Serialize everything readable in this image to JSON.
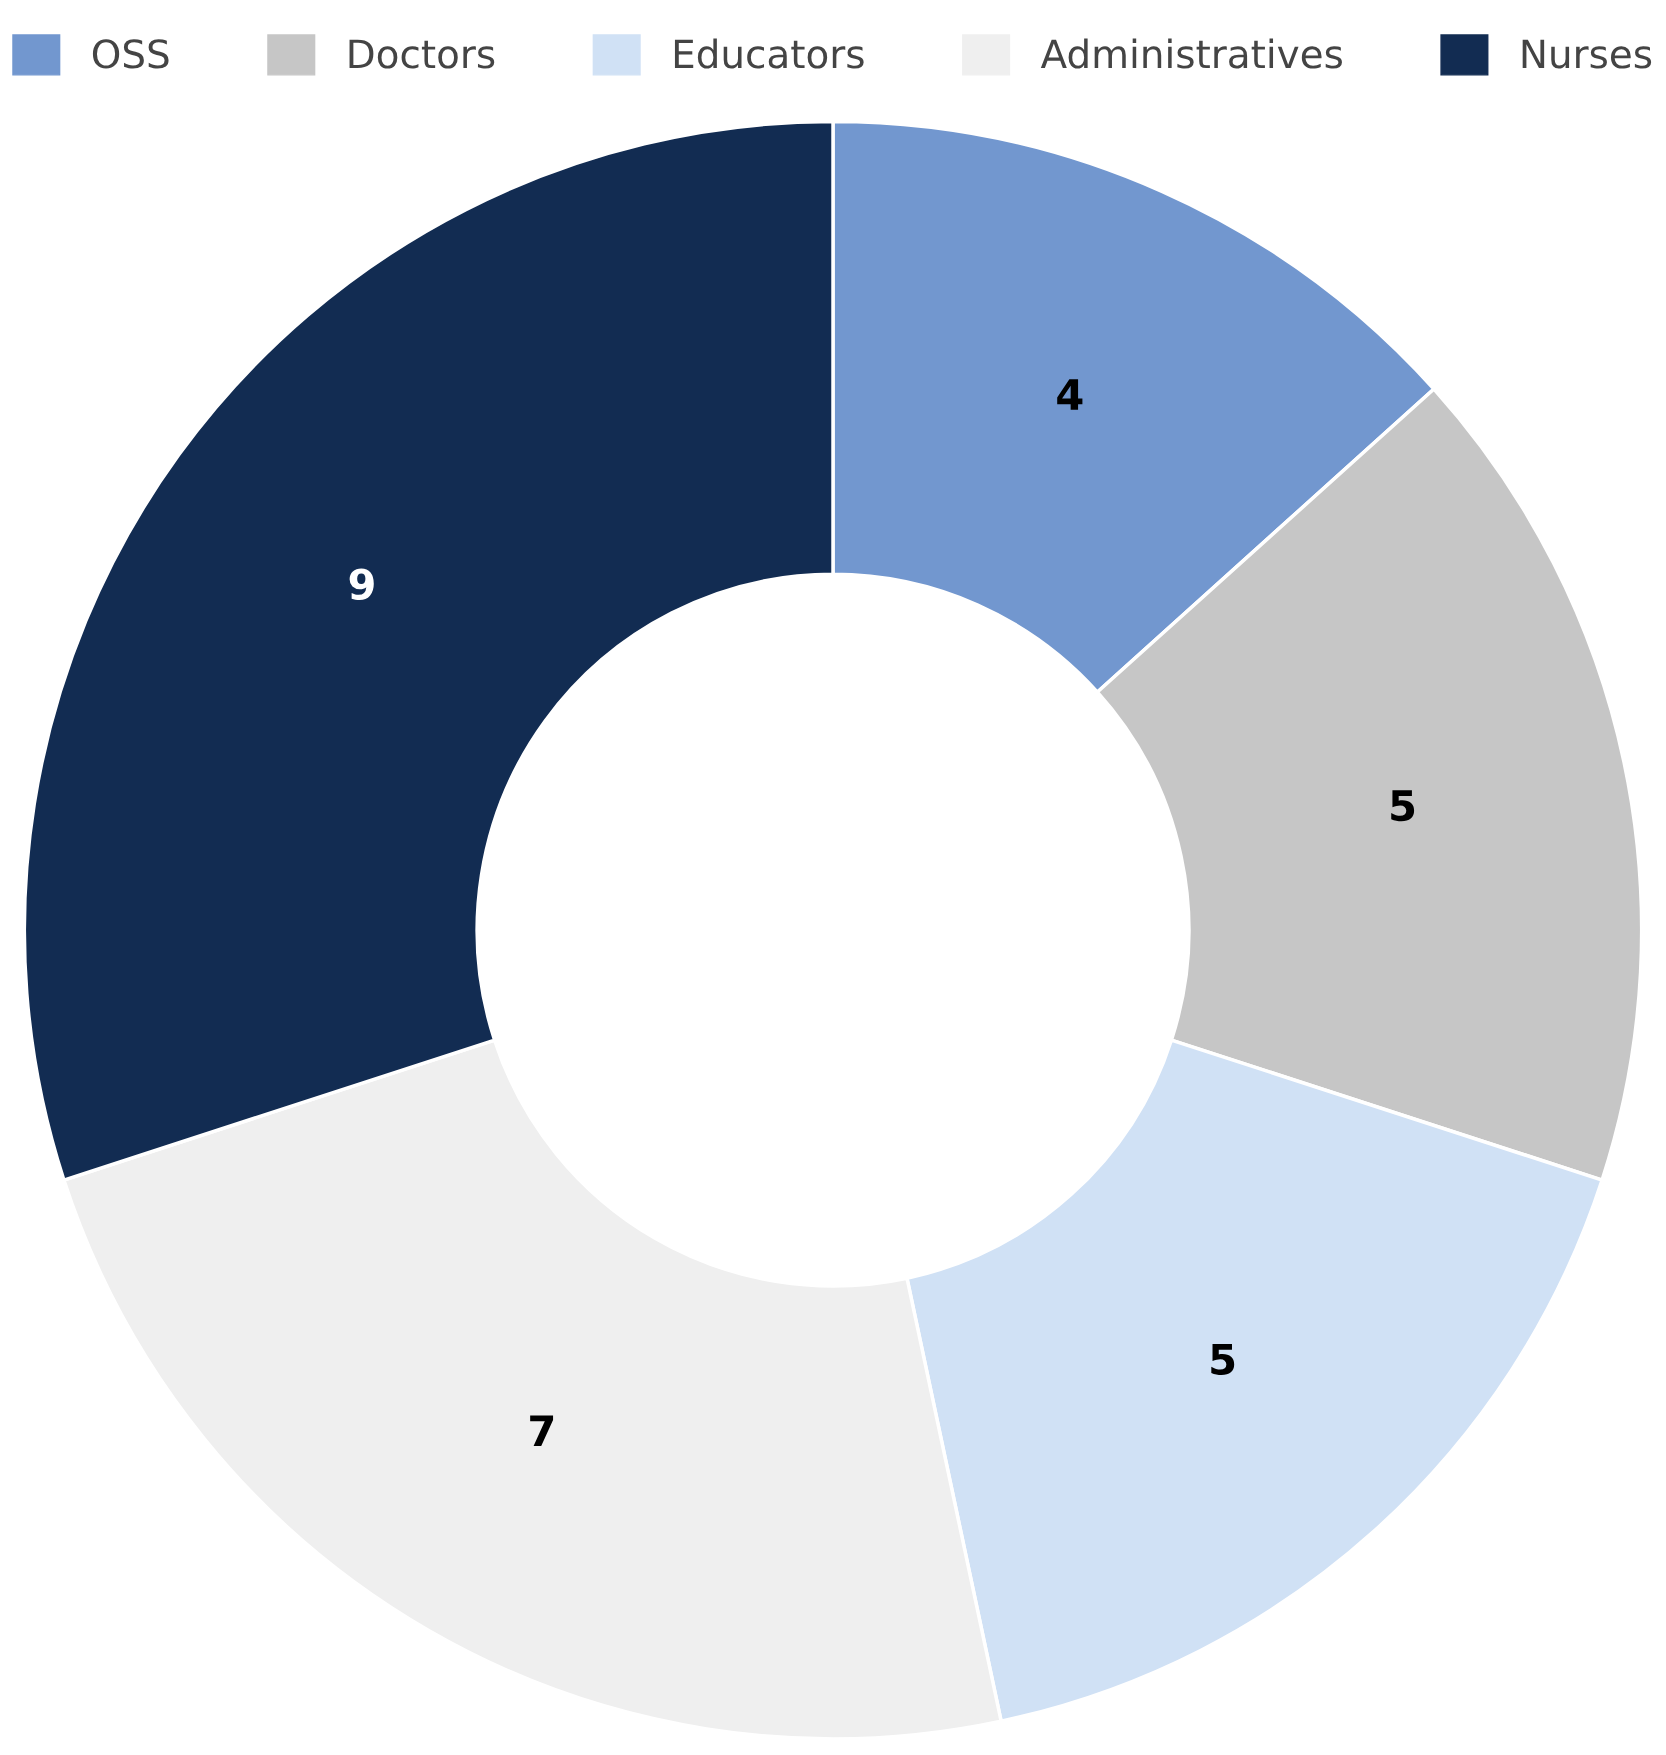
{
  "chart_data": {
    "type": "donut",
    "categories": [
      "OSS",
      "Doctors",
      "Educators",
      "Administratives",
      "Nurses"
    ],
    "values": [
      4,
      5,
      5,
      7,
      9
    ],
    "colors": [
      "#7297cf",
      "#c6c6c6",
      "#d0e1f5",
      "#efefef",
      "#122c52"
    ],
    "data_labels": true,
    "legend": "top"
  }
}
